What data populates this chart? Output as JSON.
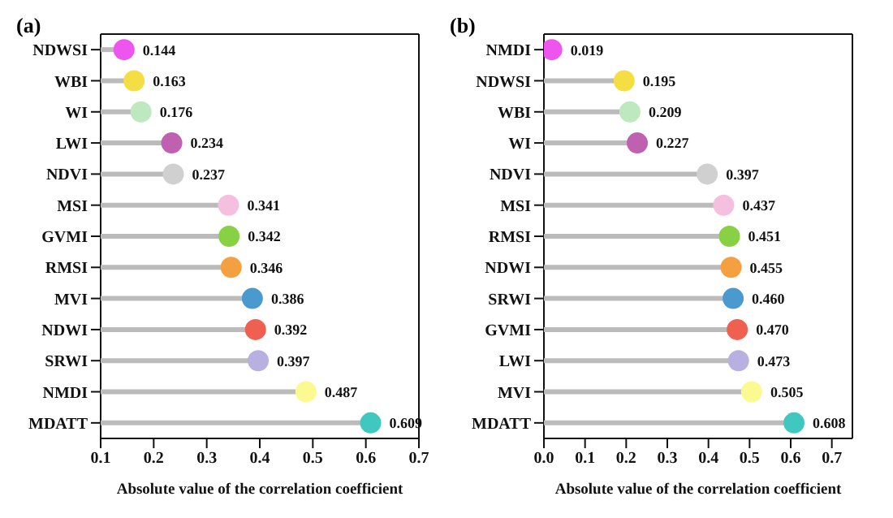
{
  "chart_data": [
    {
      "type": "lollipop",
      "title": "(a)",
      "orientation": "horizontal",
      "xlabel": "Absolute value of the correlation coefficient",
      "categories": [
        "NDWSI",
        "WBI",
        "WI",
        "LWI",
        "NDVI",
        "MSI",
        "GVMI",
        "RMSI",
        "MVI",
        "NDWI",
        "SRWI",
        "NMDI",
        "MDATT"
      ],
      "values": [
        0.144,
        0.163,
        0.176,
        0.234,
        0.237,
        0.341,
        0.342,
        0.346,
        0.386,
        0.392,
        0.397,
        0.487,
        0.609
      ],
      "value_labels": [
        "0.144",
        "0.163",
        "0.176",
        "0.234",
        "0.237",
        "0.341",
        "0.342",
        "0.346",
        "0.386",
        "0.392",
        "0.397",
        "0.487",
        "0.609"
      ],
      "colors": [
        "#ee55ee",
        "#f5dd44",
        "#bde8c0",
        "#c060b0",
        "#d0d0d0",
        "#f5c0e0",
        "#88d044",
        "#f5a040",
        "#4a9ad0",
        "#f06050",
        "#b8b0e0",
        "#fafa90",
        "#40c8c0"
      ],
      "xlim": [
        0.1,
        0.7
      ],
      "xticks": [
        0.1,
        0.2,
        0.3,
        0.4,
        0.5,
        0.6,
        0.7
      ],
      "legend": false
    },
    {
      "type": "lollipop",
      "title": "(b)",
      "orientation": "horizontal",
      "xlabel": "Absolute value of the correlation coefficient",
      "categories": [
        "NMDI",
        "NDWSI",
        "WBI",
        "WI",
        "NDVI",
        "MSI",
        "RMSI",
        "NDWI",
        "SRWI",
        "GVMI",
        "LWI",
        "MVI",
        "MDATT"
      ],
      "values": [
        0.019,
        0.195,
        0.209,
        0.227,
        0.397,
        0.437,
        0.451,
        0.455,
        0.46,
        0.47,
        0.473,
        0.505,
        0.608
      ],
      "value_labels": [
        "0.019",
        "0.195",
        "0.209",
        "0.227",
        "0.397",
        "0.437",
        "0.451",
        "0.455",
        "0.460",
        "0.470",
        "0.473",
        "0.505",
        "0.608"
      ],
      "colors": [
        "#ee55ee",
        "#f5dd44",
        "#bde8c0",
        "#c060b0",
        "#d0d0d0",
        "#f5c0e0",
        "#88d044",
        "#f5a040",
        "#4a9ad0",
        "#f06050",
        "#b8b0e0",
        "#fafa90",
        "#40c8c0"
      ],
      "xlim": [
        0.0,
        0.75
      ],
      "xticks": [
        {
          "value": 0,
          "label": "0.0"
        },
        0.1,
        0.2,
        0.3,
        0.4,
        0.5,
        0.6,
        0.7
      ],
      "legend": false
    }
  ]
}
